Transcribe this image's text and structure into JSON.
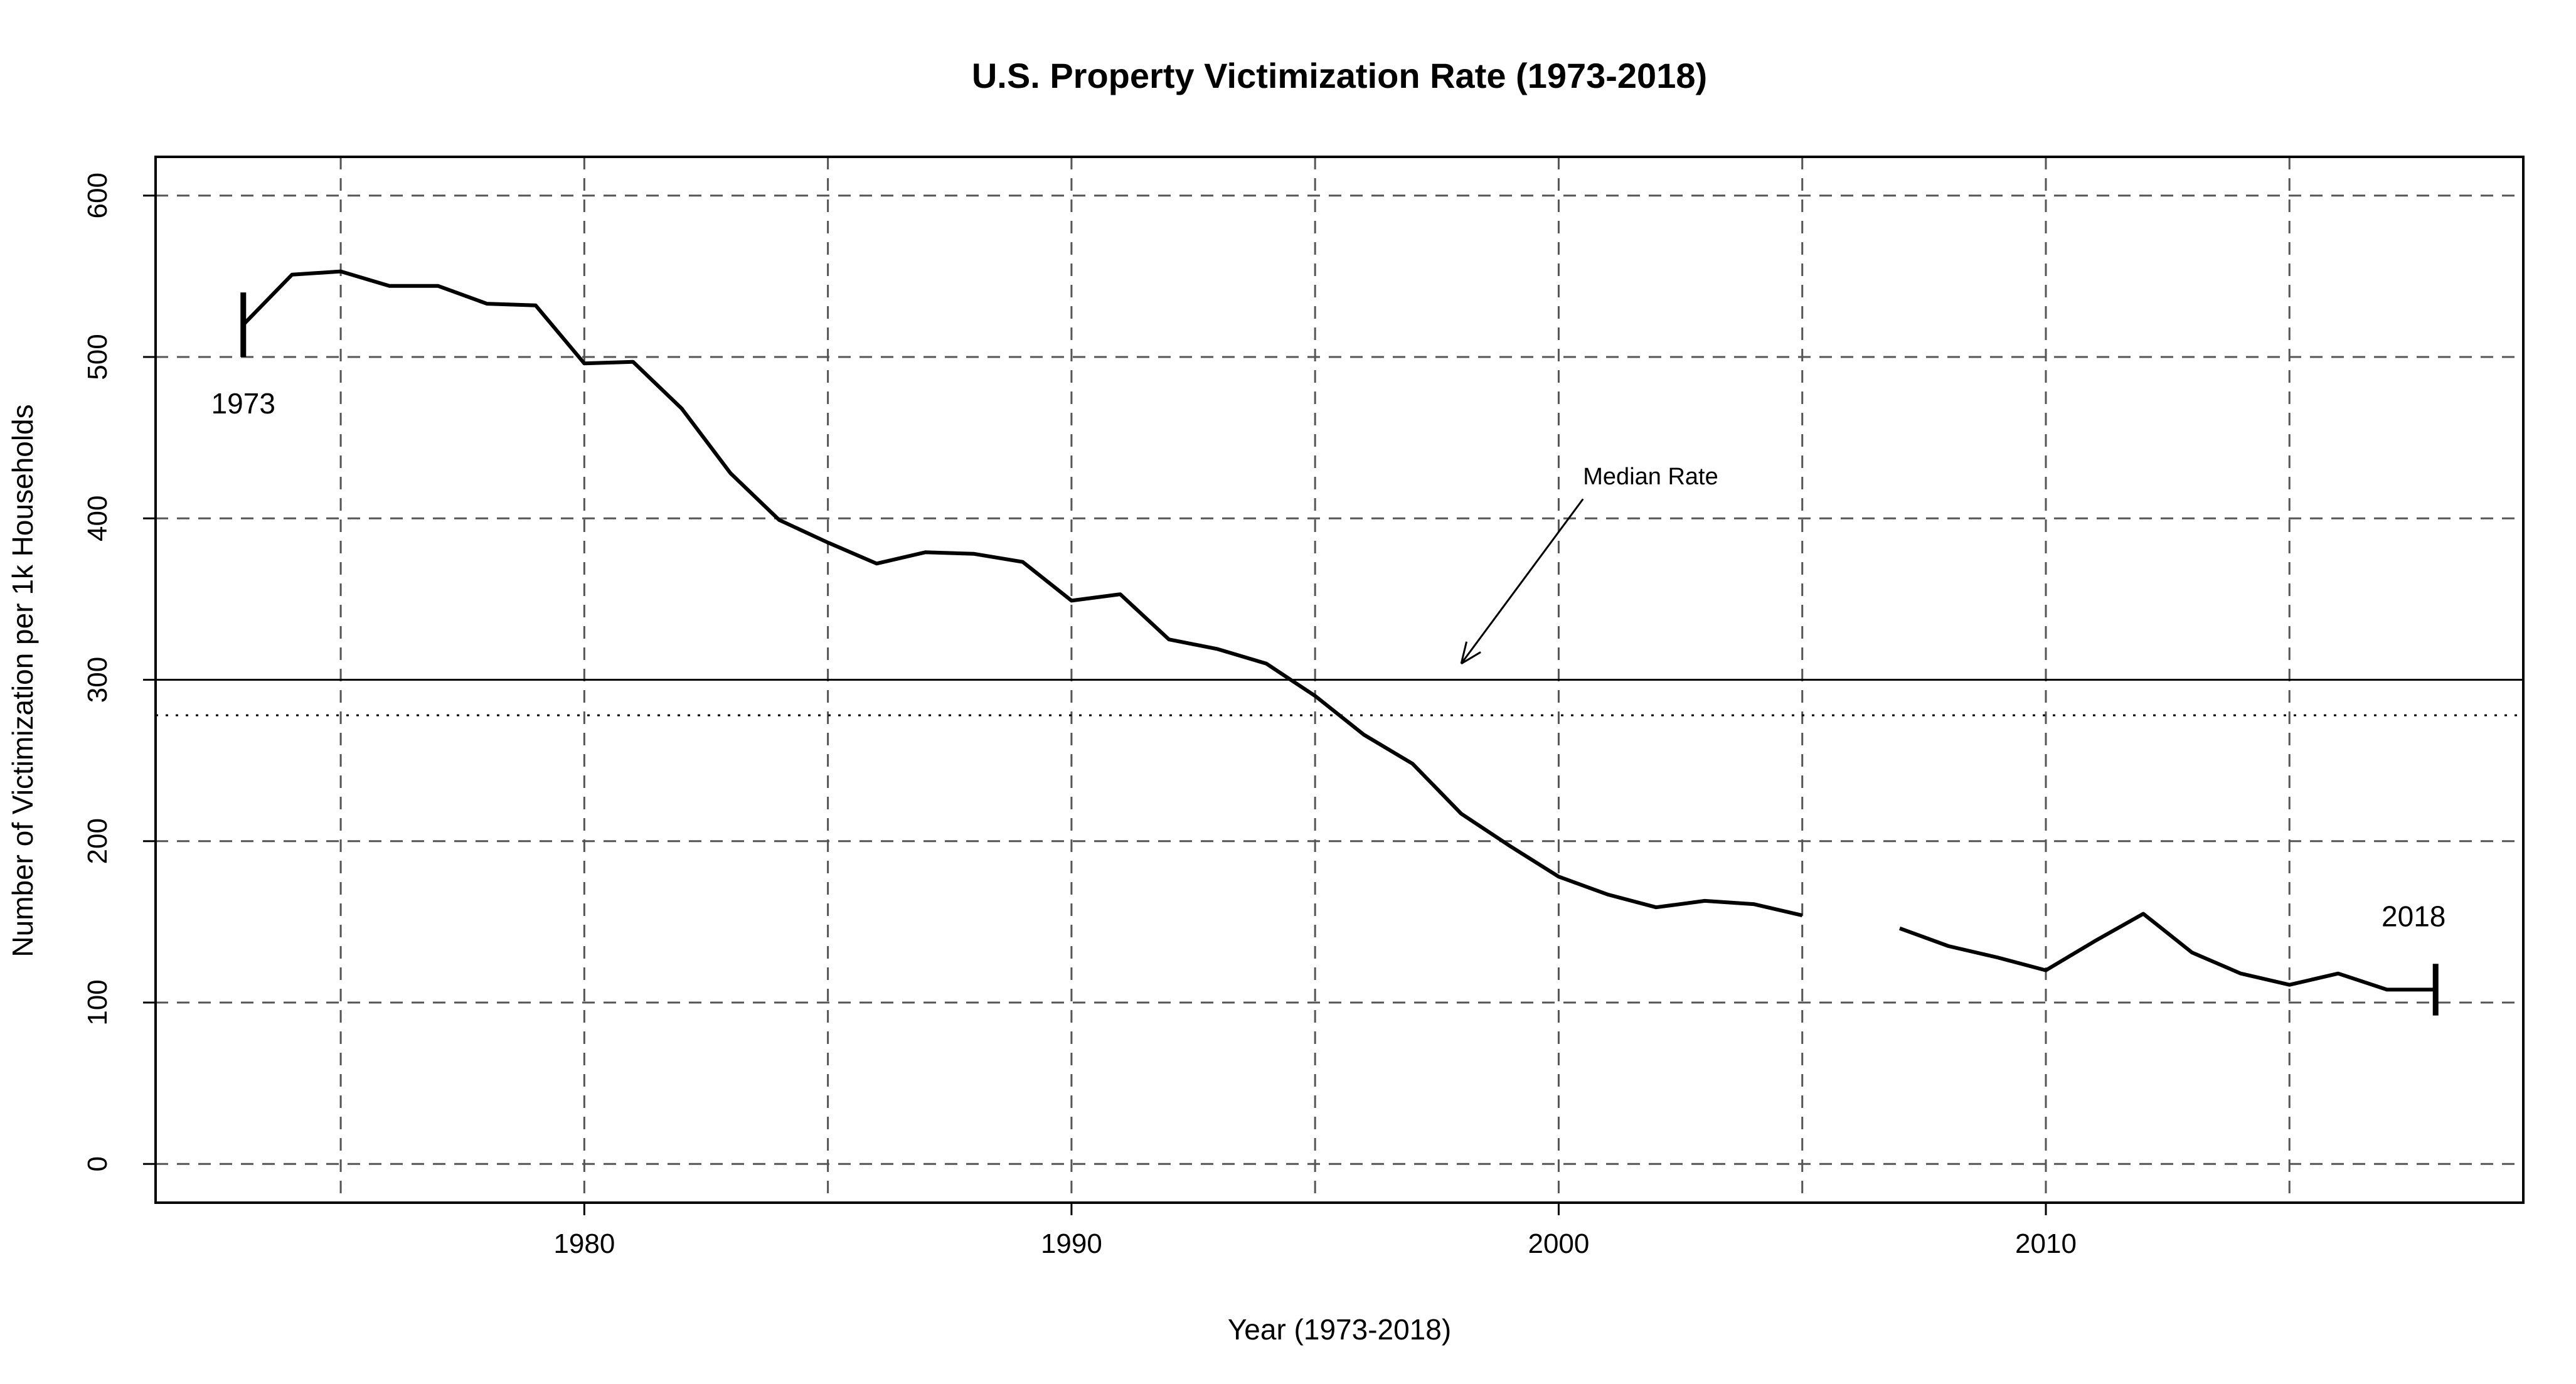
{
  "chart_data": {
    "type": "line",
    "title": "U.S. Property Victimization Rate (1973-2018)",
    "xlabel": "Year (1973-2018)",
    "ylabel": "Number of Victimization per 1k Households",
    "xlim": [
      1971.2,
      2019.8
    ],
    "ylim": [
      -24,
      624
    ],
    "x_ticks": [
      1980,
      1990,
      2000,
      2010
    ],
    "y_ticks": [
      0,
      100,
      200,
      300,
      400,
      500,
      600
    ],
    "x_gridlines": [
      1975,
      1980,
      1985,
      1990,
      1995,
      2000,
      2005,
      2010,
      2015
    ],
    "y_gridlines": [
      0,
      100,
      200,
      300,
      400,
      500,
      600
    ],
    "grid": true,
    "grid_style": "dashed",
    "series": [
      {
        "points": [
          [
            1973,
            520
          ],
          [
            1974,
            551
          ],
          [
            1975,
            553
          ],
          [
            1976,
            544
          ],
          [
            1977,
            544
          ],
          [
            1978,
            533
          ],
          [
            1979,
            532
          ],
          [
            1980,
            496
          ],
          [
            1981,
            497
          ],
          [
            1982,
            468
          ],
          [
            1983,
            428
          ],
          [
            1984,
            399
          ],
          [
            1985,
            385
          ],
          [
            1986,
            372
          ],
          [
            1987,
            379
          ],
          [
            1988,
            378
          ],
          [
            1989,
            373
          ],
          [
            1990,
            349
          ],
          [
            1991,
            353
          ],
          [
            1992,
            325
          ],
          [
            1993,
            319
          ],
          [
            1994,
            310
          ],
          [
            1995,
            290
          ],
          [
            1996,
            266
          ],
          [
            1997,
            248
          ],
          [
            1998,
            217
          ],
          [
            1999,
            197
          ],
          [
            2000,
            178
          ],
          [
            2001,
            167
          ],
          [
            2002,
            159
          ],
          [
            2003,
            163
          ],
          [
            2004,
            161
          ],
          [
            2005,
            154
          ],
          [
            2006,
            null
          ],
          [
            2007,
            146
          ],
          [
            2008,
            135
          ],
          [
            2009,
            128
          ],
          [
            2010,
            120
          ],
          [
            2011,
            138
          ],
          [
            2012,
            155
          ],
          [
            2013,
            131
          ],
          [
            2014,
            118
          ],
          [
            2015,
            111
          ],
          [
            2016,
            118
          ],
          [
            2017,
            108
          ],
          [
            2018,
            108
          ]
        ]
      }
    ],
    "reference_lines": [
      {
        "y": 300,
        "style": "solid"
      },
      {
        "y": 278,
        "style": "dotted"
      }
    ],
    "endpoint_markers": [
      {
        "x": 1973,
        "y_from": 500,
        "y_to": 540,
        "label": "1973"
      },
      {
        "x": 2018,
        "y_from": 92,
        "y_to": 124,
        "label": "2018"
      }
    ],
    "annotation": {
      "text": "Median Rate",
      "text_x": 2000.5,
      "text_y": 421,
      "arrow_from_x": 2000.5,
      "arrow_from_y": 412,
      "arrow_to_x": 1998,
      "arrow_to_y": 310
    },
    "colors": {
      "line": "#000000",
      "grid": "#555555"
    }
  }
}
